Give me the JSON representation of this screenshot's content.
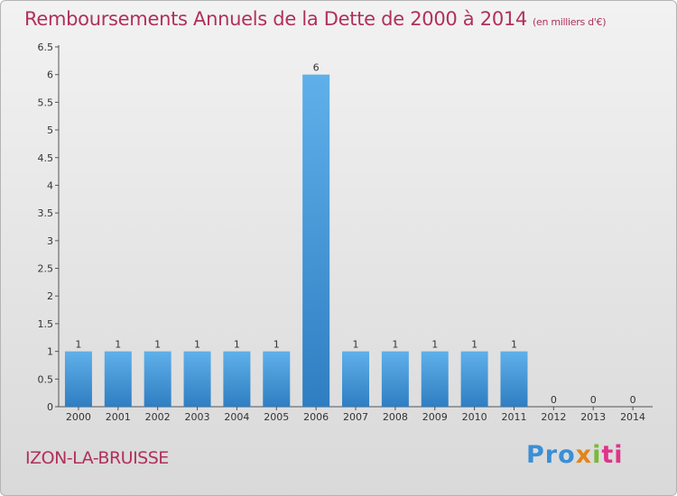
{
  "header": {
    "title": "Remboursements Annuels de la Dette de 2000 à 2014",
    "unit": "(en milliers d'€)"
  },
  "footer": {
    "commune": "IZON-LA-BRUISSE",
    "logo_parts": [
      "Pro",
      "x",
      "i",
      "ti"
    ]
  },
  "colors": {
    "title": "#b0305a",
    "bar_top": "#5fb0ea",
    "bar_bottom": "#2f7ec2"
  },
  "chart_data": {
    "type": "bar",
    "categories": [
      "2000",
      "2001",
      "2002",
      "2003",
      "2004",
      "2005",
      "2006",
      "2007",
      "2008",
      "2009",
      "2010",
      "2011",
      "2012",
      "2013",
      "2014"
    ],
    "values": [
      1,
      1,
      1,
      1,
      1,
      1,
      6,
      1,
      1,
      1,
      1,
      1,
      0,
      0,
      0
    ],
    "title": "Remboursements Annuels de la Dette de 2000 à 2014",
    "xlabel": "",
    "ylabel": "",
    "ylim": [
      0,
      6.5
    ],
    "yticks": [
      0,
      0.5,
      1,
      1.5,
      2,
      2.5,
      3,
      3.5,
      4,
      4.5,
      5,
      5.5,
      6,
      6.5
    ],
    "grid": false,
    "data_labels": true
  }
}
